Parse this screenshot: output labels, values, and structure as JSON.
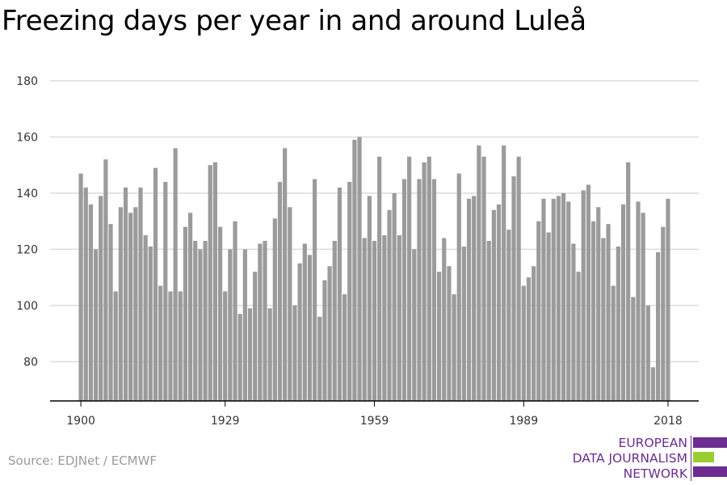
{
  "title": "Freezing days per year in and around Luleå",
  "source": "Source: EDJNet / ECMWF",
  "logo": {
    "lines": [
      "EUROPEAN",
      "DATA JOURNALISM",
      "NETWORK"
    ],
    "colors": {
      "purple": "#6b2d8f",
      "green": "#9acd32"
    }
  },
  "colors": {
    "bar": "#9b9b9b",
    "grid": "#dcdcdc",
    "axis": "#000000",
    "tick_text": "#333333"
  },
  "chart_data": {
    "type": "bar",
    "title": "Freezing days per year in and around Luleå",
    "xlabel": "",
    "ylabel": "",
    "x_range": [
      1900,
      2018
    ],
    "x_ticks": [
      1900,
      1929,
      1959,
      1989,
      2018
    ],
    "y_ticks": [
      80,
      100,
      120,
      140,
      160,
      180
    ],
    "ylim": [
      66,
      180
    ],
    "grid": true,
    "series": [
      {
        "x": [
          1900,
          1901,
          1902,
          1903,
          1904,
          1905,
          1906,
          1907,
          1908,
          1909,
          1910,
          1911,
          1912,
          1913,
          1914,
          1915,
          1916,
          1917,
          1918,
          1919,
          1920,
          1921,
          1922,
          1923,
          1924,
          1925,
          1926,
          1927,
          1928,
          1929,
          1930,
          1931,
          1932,
          1933,
          1934,
          1935,
          1936,
          1937,
          1938,
          1939,
          1940,
          1941,
          1942,
          1943,
          1944,
          1945,
          1946,
          1947,
          1948,
          1949,
          1950,
          1951,
          1952,
          1953,
          1954,
          1955,
          1956,
          1957,
          1958,
          1959,
          1960,
          1961,
          1962,
          1963,
          1964,
          1965,
          1966,
          1967,
          1968,
          1969,
          1970,
          1971,
          1972,
          1973,
          1974,
          1975,
          1976,
          1977,
          1978,
          1979,
          1980,
          1981,
          1982,
          1983,
          1984,
          1985,
          1986,
          1987,
          1988,
          1989,
          1990,
          1991,
          1992,
          1993,
          1994,
          1995,
          1996,
          1997,
          1998,
          1999,
          2000,
          2001,
          2002,
          2003,
          2004,
          2005,
          2006,
          2007,
          2008,
          2009,
          2010,
          2011,
          2012,
          2013,
          2014,
          2015,
          2016,
          2017,
          2018
        ],
        "values": [
          147,
          142,
          136,
          120,
          139,
          152,
          129,
          105,
          135,
          142,
          133,
          135,
          142,
          125,
          121,
          149,
          107,
          144,
          105,
          156,
          105,
          128,
          133,
          123,
          120,
          123,
          150,
          151,
          128,
          105,
          120,
          130,
          97,
          120,
          99,
          112,
          122,
          123,
          99,
          131,
          144,
          156,
          135,
          100,
          115,
          122,
          118,
          145,
          96,
          109,
          114,
          123,
          142,
          104,
          144,
          159,
          160,
          124,
          139,
          123,
          153,
          125,
          134,
          140,
          125,
          145,
          153,
          120,
          145,
          151,
          153,
          145,
          112,
          124,
          114,
          104,
          147,
          121,
          138,
          139,
          157,
          153,
          123,
          134,
          136,
          157,
          127,
          146,
          153,
          107,
          110,
          114,
          130,
          138,
          126,
          138,
          139,
          140,
          137,
          122,
          112,
          141,
          143,
          130,
          135,
          124,
          129,
          107,
          121,
          136,
          151,
          103,
          137,
          133,
          100,
          78,
          119,
          128,
          138
        ]
      }
    ]
  }
}
